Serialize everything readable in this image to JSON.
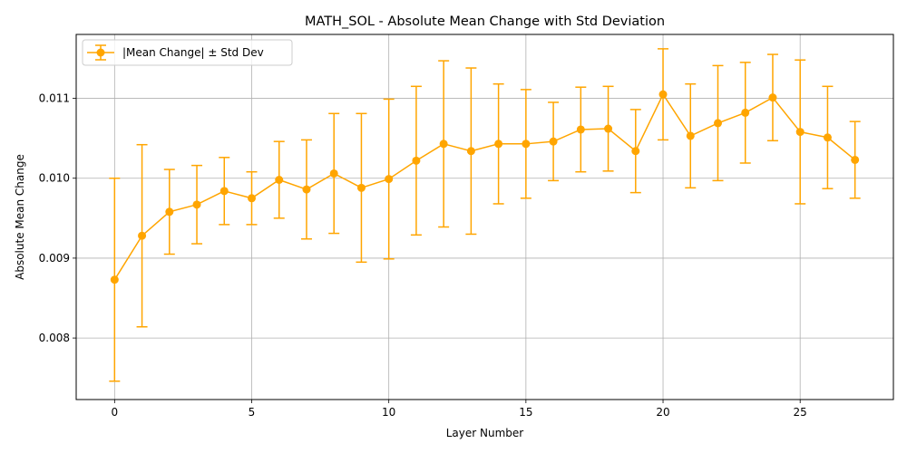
{
  "chart_data": {
    "type": "line",
    "title": "MATH_SOL - Absolute Mean Change with Std Deviation",
    "xlabel": "Layer Number",
    "ylabel": "Absolute Mean Change",
    "xlim": [
      -1.4,
      28.4
    ],
    "ylim": [
      0.00723,
      0.0118
    ],
    "xticks": [
      0,
      5,
      10,
      15,
      20,
      25
    ],
    "xtick_labels": [
      "0",
      "5",
      "10",
      "15",
      "20",
      "25"
    ],
    "yticks": [
      0.008,
      0.009,
      0.01,
      0.011
    ],
    "ytick_labels": [
      "0.008",
      "0.009",
      "0.010",
      "0.011"
    ],
    "grid": true,
    "legend_position": "top-left",
    "color": "#FFA500",
    "series": [
      {
        "name": "|Mean Change| ± Std Dev",
        "x": [
          0,
          1,
          2,
          3,
          4,
          5,
          6,
          7,
          8,
          9,
          10,
          11,
          12,
          13,
          14,
          15,
          16,
          17,
          18,
          19,
          20,
          21,
          22,
          23,
          24,
          25,
          26,
          27
        ],
        "y": [
          0.00873,
          0.00928,
          0.00958,
          0.00967,
          0.00984,
          0.00975,
          0.00998,
          0.00986,
          0.01006,
          0.00988,
          0.00999,
          0.01022,
          0.01043,
          0.01034,
          0.01043,
          0.01043,
          0.01046,
          0.01061,
          0.01062,
          0.01034,
          0.01105,
          0.01053,
          0.01069,
          0.01082,
          0.01101,
          0.01058,
          0.01051,
          0.01023
        ],
        "err": [
          0.00127,
          0.00114,
          0.00053,
          0.00049,
          0.00042,
          0.00033,
          0.00048,
          0.00062,
          0.00075,
          0.00093,
          0.001,
          0.00093,
          0.00104,
          0.00104,
          0.00075,
          0.00068,
          0.00049,
          0.00053,
          0.00053,
          0.00052,
          0.00057,
          0.00065,
          0.00072,
          0.00063,
          0.00054,
          0.0009,
          0.00064,
          0.00048
        ]
      }
    ]
  }
}
